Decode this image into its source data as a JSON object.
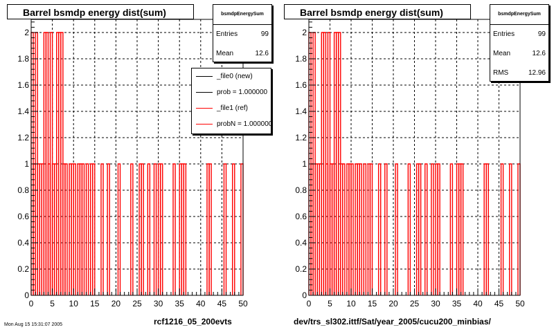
{
  "chart_data": [
    {
      "type": "bar",
      "title": "Barrel bsmdp energy dist(sum)",
      "xlim": [
        0,
        50
      ],
      "ylim": [
        0,
        2.1
      ],
      "x_ticks": [
        0,
        5,
        10,
        15,
        20,
        25,
        30,
        35,
        40,
        45,
        50
      ],
      "y_ticks": [
        0,
        0.2,
        0.4,
        0.6,
        0.8,
        1,
        1.2,
        1.4,
        1.6,
        1.8,
        2
      ],
      "x_tick_labels": [
        "0",
        "5",
        "10",
        "15",
        "20",
        "25",
        "30",
        "35",
        "40",
        "45",
        "50"
      ],
      "y_tick_labels": [
        "0",
        "0.2",
        "0.4",
        "0.6",
        "0.8",
        "1",
        "1.2",
        "1.4",
        "1.6",
        "1.8",
        "2"
      ],
      "grid": true,
      "stats": {
        "name": "bsmdpEnergySum",
        "entries_label": "Entries",
        "entries": "99",
        "mean_label": "Mean",
        "mean": "12.6"
      },
      "legend": {
        "placement": "top-right",
        "entries": [
          "_file0 (new)",
          "prob = 1.000000",
          "_file1 (ref)",
          "probN = 1.000000"
        ]
      },
      "series": [
        {
          "name": "_file1 (ref)",
          "color": "#ff0000",
          "bins": [
            [
              0,
              2
            ],
            [
              0.5,
              1
            ],
            [
              1,
              2
            ],
            [
              1.5,
              1
            ],
            [
              2,
              1
            ],
            [
              2.5,
              1
            ],
            [
              3,
              2
            ],
            [
              3.5,
              2
            ],
            [
              4,
              1
            ],
            [
              4.5,
              2
            ],
            [
              5,
              1
            ],
            [
              5.5,
              1
            ],
            [
              6,
              2
            ],
            [
              6.5,
              2
            ],
            [
              7,
              2
            ],
            [
              7.5,
              1
            ],
            [
              8,
              1
            ],
            [
              9,
              1
            ],
            [
              9.5,
              1
            ],
            [
              10,
              1
            ],
            [
              11,
              1
            ],
            [
              11.5,
              1
            ],
            [
              12,
              1
            ],
            [
              13,
              1
            ],
            [
              14,
              1
            ],
            [
              14.5,
              1
            ],
            [
              16.5,
              1
            ],
            [
              18,
              1
            ],
            [
              20.5,
              1
            ],
            [
              23.5,
              1
            ],
            [
              25.5,
              1
            ],
            [
              26,
              1
            ],
            [
              27.5,
              1
            ],
            [
              29,
              1
            ],
            [
              30,
              1
            ],
            [
              30.5,
              1
            ],
            [
              33.5,
              1
            ],
            [
              35,
              1
            ],
            [
              35.5,
              1
            ],
            [
              36,
              1
            ],
            [
              41.5,
              1
            ],
            [
              42,
              1
            ],
            [
              45.5,
              1
            ],
            [
              47.5,
              1
            ],
            [
              49.5,
              1
            ]
          ]
        }
      ],
      "bottom_label": "rcf1216_05_200evts"
    },
    {
      "type": "bar",
      "title": "Barrel bsmdp energy dist(sum)",
      "xlim": [
        0,
        50
      ],
      "ylim": [
        0,
        2.1
      ],
      "x_ticks": [
        0,
        5,
        10,
        15,
        20,
        25,
        30,
        35,
        40,
        45,
        50
      ],
      "y_ticks": [
        0,
        0.2,
        0.4,
        0.6,
        0.8,
        1,
        1.2,
        1.4,
        1.6,
        1.8,
        2
      ],
      "x_tick_labels": [
        "0",
        "5",
        "10",
        "15",
        "20",
        "25",
        "30",
        "35",
        "40",
        "45",
        "50"
      ],
      "y_tick_labels": [
        "0",
        "0.2",
        "0.4",
        "0.6",
        "0.8",
        "1",
        "1.2",
        "1.4",
        "1.6",
        "1.8",
        "2"
      ],
      "grid": true,
      "stats": {
        "name": "bsmdpEnergySum",
        "entries_label": "Entries",
        "entries": "99",
        "mean_label": "Mean",
        "mean": "12.6",
        "rms_label": "RMS",
        "rms": "12.96"
      },
      "series": [
        {
          "color": "#ff0000",
          "bins": [
            [
              0,
              2
            ],
            [
              0.5,
              1
            ],
            [
              1,
              2
            ],
            [
              1.5,
              1
            ],
            [
              2,
              1
            ],
            [
              2.5,
              1
            ],
            [
              3,
              2
            ],
            [
              3.5,
              2
            ],
            [
              4,
              1
            ],
            [
              4.5,
              2
            ],
            [
              5,
              1
            ],
            [
              5.5,
              1
            ],
            [
              6,
              2
            ],
            [
              6.5,
              2
            ],
            [
              7,
              2
            ],
            [
              7.5,
              1
            ],
            [
              8,
              1
            ],
            [
              9,
              1
            ],
            [
              9.5,
              1
            ],
            [
              10,
              1
            ],
            [
              11,
              1
            ],
            [
              11.5,
              1
            ],
            [
              12,
              1
            ],
            [
              13,
              1
            ],
            [
              14,
              1
            ],
            [
              14.5,
              1
            ],
            [
              16.5,
              1
            ],
            [
              18,
              1
            ],
            [
              20.5,
              1
            ],
            [
              23.5,
              1
            ],
            [
              25.5,
              1
            ],
            [
              26,
              1
            ],
            [
              27.5,
              1
            ],
            [
              29,
              1
            ],
            [
              30,
              1
            ],
            [
              30.5,
              1
            ],
            [
              33.5,
              1
            ],
            [
              35,
              1
            ],
            [
              35.5,
              1
            ],
            [
              36,
              1
            ],
            [
              41.5,
              1
            ],
            [
              42,
              1
            ],
            [
              45.5,
              1
            ],
            [
              47.5,
              1
            ],
            [
              49.5,
              1
            ]
          ]
        }
      ],
      "bottom_label": "dev/trs_sl302.ittf/Sat/year_2005/cucu200_minbias/"
    }
  ],
  "footer_text": "Mon Aug 15 15:31:07 2005"
}
